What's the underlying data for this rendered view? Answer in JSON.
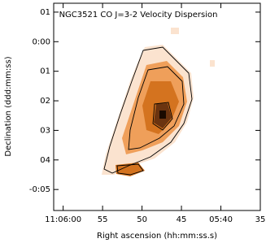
{
  "chart_data": {
    "type": "image",
    "title": "NGC3521 CO J=3-2 Velocity Dispersion",
    "xlabel": "Right ascension (hh:mm:ss.s)",
    "ylabel": "Declination (ddd:mm:ss)",
    "xlim": [
      61.2,
      35
    ],
    "ylim": [
      -5.71,
      1.3
    ],
    "xticks": [
      {
        "value": 60,
        "label": "11:06:00"
      },
      55,
      50,
      45,
      {
        "value": 40,
        "label": "05:40"
      },
      35
    ],
    "yticks": [
      {
        "value": 1,
        "label": "01"
      },
      {
        "value": 0,
        "label": "0:00"
      },
      {
        "value": -1,
        "label": "01"
      },
      {
        "value": -2,
        "label": "02"
      },
      {
        "value": -3,
        "label": "03"
      },
      {
        "value": -4,
        "label": "04"
      },
      {
        "value": -5,
        "label": "-0:05"
      }
    ]
  }
}
